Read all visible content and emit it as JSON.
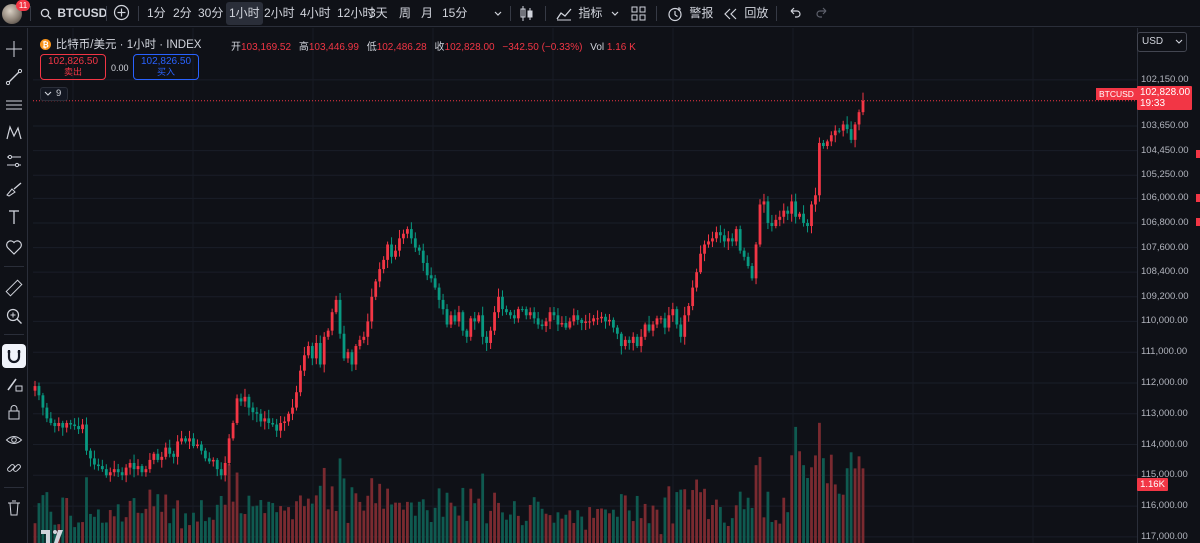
{
  "topbar": {
    "notification_count": "11",
    "symbol": "BTCUSD",
    "intervals": [
      "1分",
      "2分",
      "30分",
      "1小时",
      "2小时",
      "4小时",
      "12小时",
      "3天",
      "周",
      "月",
      "15分"
    ],
    "active_interval": "1小时",
    "indicators_label": "指标",
    "alert_label": "警报",
    "replay_label": "回放"
  },
  "legend": {
    "title": "比特币/美元 · 1小时 · INDEX",
    "open_label": "开",
    "open": "103,169.52",
    "high_label": "高",
    "high": "103,446.99",
    "low_label": "低",
    "low": "102,486.28",
    "close_label": "收",
    "close": "102,828.00",
    "change": "−342.50 (−0.33%)",
    "vol_label": "Vol",
    "vol": "1.16 K",
    "sell_price": "102,826.50",
    "sell_label": "卖出",
    "spread": "0.00",
    "buy_price": "102,826.50",
    "buy_label": "买入",
    "indicator_count": "9"
  },
  "currency": "USD",
  "price_axis": {
    "labels": [
      "102,150.00",
      "103,650.00",
      "104,450.00",
      "105,250.00",
      "106,000.00",
      "106,800.00",
      "107,600.00",
      "108,400.00",
      "109,200.00",
      "110,000.00",
      "111,000.00",
      "112,000.00",
      "113,000.00",
      "114,000.00",
      "115,000.00",
      "116,000.00",
      "117,000.00"
    ],
    "current_symbol": "BTCUSD",
    "current_price": "102,828.00",
    "countdown": "19:33",
    "volume_badge": "1.16K"
  },
  "colors": {
    "background": "#0f1117",
    "up": "#f23645",
    "down": "#089981",
    "up_volume": "#7a2a30",
    "down_volume": "#0f5a50",
    "buy": "#2962ff"
  },
  "chart_data": {
    "type": "candlestick",
    "symbol": "BTCUSD",
    "interval": "1小时",
    "inverted_price_scale": true,
    "ylim": [
      117200,
      101700
    ],
    "current_price": 102828.0,
    "last_candle": {
      "open": 103169.52,
      "high": 103446.99,
      "low": 102486.28,
      "close": 102828.0,
      "volume_k": 1.16
    },
    "close_series": [
      112100,
      112400,
      112800,
      113150,
      113300,
      113400,
      113300,
      113450,
      113300,
      113350,
      113400,
      113500,
      113350,
      114200,
      114450,
      114650,
      114700,
      114800,
      115000,
      114900,
      114800,
      114900,
      115000,
      114750,
      114600,
      114800,
      114700,
      114900,
      114800,
      114500,
      114300,
      114500,
      114400,
      114100,
      114300,
      114400,
      113900,
      113800,
      113900,
      113800,
      114050,
      114000,
      114200,
      114450,
      114550,
      114500,
      114800,
      115000,
      114600,
      113800,
      113300,
      112500,
      112600,
      112450,
      112800,
      112950,
      113000,
      113250,
      113150,
      113300,
      113350,
      113550,
      113300,
      113250,
      113000,
      112800,
      112300,
      111600,
      111100,
      110800,
      111200,
      110700,
      111400,
      110500,
      110300,
      109700,
      109300,
      110400,
      111200,
      111000,
      111400,
      110800,
      110600,
      110500,
      110000,
      109200,
      108700,
      108300,
      108000,
      107500,
      107900,
      107700,
      107300,
      107150,
      107000,
      107300,
      107600,
      107700,
      108100,
      108500,
      108600,
      108900,
      109300,
      109600,
      110100,
      109800,
      110000,
      109700,
      110300,
      110500,
      109900,
      110000,
      109800,
      110500,
      110700,
      110300,
      109700,
      109200,
      109600,
      109700,
      109800,
      109900,
      109600,
      109600,
      109800,
      109700,
      109900,
      110100,
      110150,
      110000,
      109700,
      109800,
      110100,
      110050,
      110200,
      110000,
      109800,
      109950,
      110050,
      110000,
      110000,
      109900,
      109900,
      109850,
      110000,
      109950,
      110200,
      110400,
      110800,
      110600,
      110700,
      110500,
      110800,
      110500,
      110100,
      110300,
      110100,
      109900,
      109900,
      110200,
      109800,
      109600,
      110100,
      110500,
      109800,
      109500,
      108900,
      108400,
      107800,
      107500,
      107400,
      107300,
      107100,
      107200,
      107400,
      107300,
      107400,
      107000,
      107700,
      107900,
      108200,
      108600,
      107500,
      106200,
      106100,
      106800,
      106900,
      106700,
      106600,
      106400,
      106500,
      106100,
      106600,
      106500,
      106800,
      106900,
      106200,
      105900,
      104200,
      104300,
      104150,
      103950,
      103800,
      103800,
      103600,
      103750,
      104100,
      103600,
      103200,
      102828
    ]
  }
}
